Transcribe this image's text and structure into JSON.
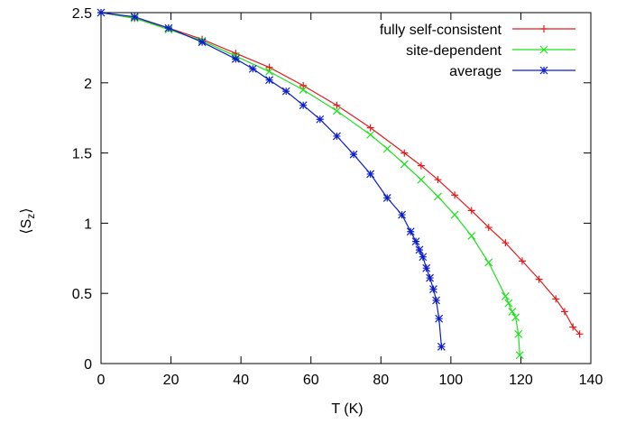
{
  "chart_data": {
    "type": "line",
    "title": "",
    "xlabel": "T (K)",
    "ylabel": "⟨S",
    "ylabel_sub": "z",
    "ylabel_end": "⟩",
    "xlim": [
      0,
      140
    ],
    "ylim": [
      0,
      2.5
    ],
    "xticks": [
      0,
      20,
      40,
      60,
      80,
      100,
      120,
      140
    ],
    "yticks": [
      0,
      0.5,
      1,
      1.5,
      2,
      2.5
    ],
    "xtick_labels": [
      "0",
      "20",
      "40",
      "60",
      "80",
      "100",
      "120",
      "140"
    ],
    "ytick_labels": [
      "0",
      "0.5",
      "1",
      "1.5",
      "2",
      "2.5"
    ],
    "grid": false,
    "legend_position": "top-right",
    "series": [
      {
        "name": "fully self-consistent",
        "color": "#e41a1c",
        "marker": "plus",
        "x": [
          0,
          9.6,
          19.3,
          28.9,
          38.5,
          48.1,
          57.8,
          67.4,
          77.0,
          86.7,
          91.5,
          96.3,
          101.1,
          105.9,
          110.8,
          115.6,
          120.4,
          125.2,
          130.0,
          132.5,
          134.9,
          136.8
        ],
        "y": [
          2.5,
          2.46,
          2.39,
          2.31,
          2.21,
          2.11,
          1.98,
          1.84,
          1.68,
          1.5,
          1.41,
          1.31,
          1.2,
          1.09,
          0.97,
          0.86,
          0.73,
          0.6,
          0.46,
          0.37,
          0.26,
          0.21
        ]
      },
      {
        "name": "site-dependent",
        "color": "#1ee11e",
        "marker": "cross",
        "x": [
          0,
          9.6,
          19.3,
          28.9,
          38.5,
          48.1,
          57.8,
          67.4,
          77.0,
          81.8,
          86.7,
          91.5,
          96.3,
          101.1,
          105.9,
          110.8,
          115.6,
          116.5,
          117.5,
          118.5,
          119.3,
          119.7
        ],
        "y": [
          2.5,
          2.46,
          2.38,
          2.3,
          2.19,
          2.08,
          1.95,
          1.8,
          1.63,
          1.53,
          1.42,
          1.31,
          1.19,
          1.06,
          0.91,
          0.72,
          0.48,
          0.43,
          0.37,
          0.33,
          0.21,
          0.06
        ]
      },
      {
        "name": "average",
        "color": "#0c1ecc",
        "marker": "star",
        "x": [
          0,
          9.6,
          19.3,
          28.9,
          38.5,
          43.4,
          48.1,
          52.9,
          57.8,
          62.6,
          67.4,
          72.2,
          77.0,
          81.8,
          86.0,
          88.5,
          90.0,
          91.0,
          92.0,
          93.0,
          94.0,
          95.0,
          95.8,
          96.6,
          97.3
        ],
        "y": [
          2.5,
          2.47,
          2.39,
          2.29,
          2.17,
          2.1,
          2.02,
          1.94,
          1.84,
          1.74,
          1.62,
          1.49,
          1.35,
          1.18,
          1.06,
          0.94,
          0.87,
          0.81,
          0.76,
          0.68,
          0.61,
          0.53,
          0.45,
          0.32,
          0.12
        ]
      }
    ]
  }
}
